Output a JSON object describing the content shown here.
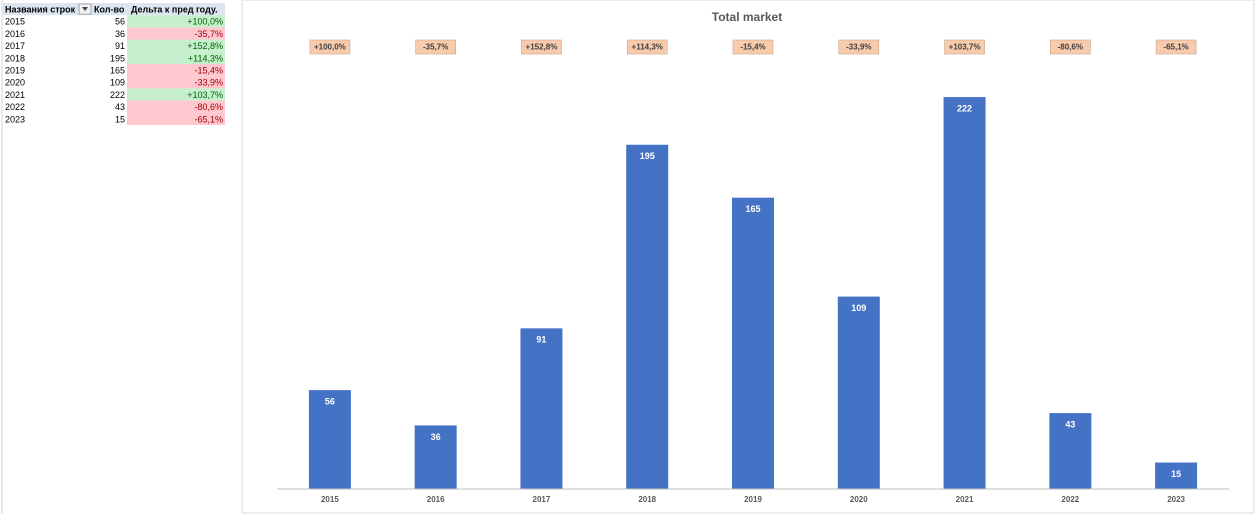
{
  "table": {
    "headers": [
      "Названия строк",
      "Кол-во",
      "Дельта к пред году."
    ],
    "rows": [
      [
        "2015",
        56,
        "+100,0%"
      ],
      [
        "2016",
        36,
        "-35,7%"
      ],
      [
        "2017",
        91,
        "+152,8%"
      ],
      [
        "2018",
        195,
        "+114,3%"
      ],
      [
        "2019",
        165,
        "-15,4%"
      ],
      [
        "2020",
        109,
        "-33,9%"
      ],
      [
        "2021",
        222,
        "+103,7%"
      ],
      [
        "2022",
        43,
        "-80,6%"
      ],
      [
        "2023",
        15,
        "-65,1%"
      ]
    ]
  },
  "chart_data": {
    "type": "bar",
    "title": "Total market",
    "categories": [
      "2015",
      "2016",
      "2017",
      "2018",
      "2019",
      "2020",
      "2021",
      "2022",
      "2023"
    ],
    "values": [
      56,
      36,
      91,
      195,
      165,
      109,
      222,
      43,
      15
    ],
    "annotations": [
      "+100,0%",
      "-35,7%",
      "+152,8%",
      "+114,3%",
      "-15,4%",
      "-33,9%",
      "+103,7%",
      "-80,6%",
      "-65,1%"
    ],
    "color": "#4472c4",
    "ylim": [
      0,
      243
    ]
  }
}
